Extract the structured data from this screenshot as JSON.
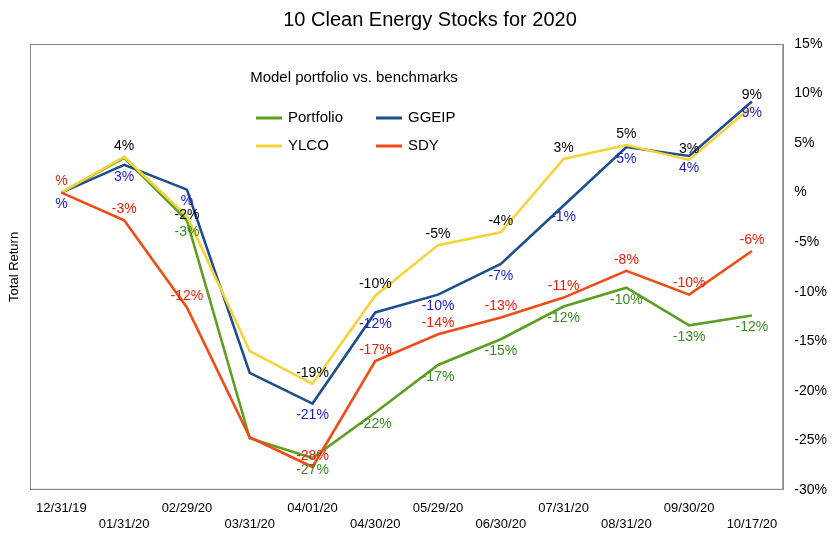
{
  "chart_data": {
    "type": "line",
    "title": "10 Clean Energy Stocks for 2020",
    "subtitle": "Model portfolio vs. benchmarks",
    "ylabel": "Total Return",
    "categories": [
      "12/31/19",
      "01/31/20",
      "02/29/20",
      "03/31/20",
      "04/01/20",
      "04/30/20",
      "05/29/20",
      "06/30/20",
      "07/31/20",
      "08/31/20",
      "09/30/20",
      "10/17/20"
    ],
    "series": [
      {
        "name": "Portfolio",
        "color": "#5e9e22",
        "values": [
          0,
          3.5,
          -2.8,
          -24.8,
          -26.8,
          -22.2,
          -17.4,
          -14.8,
          -11.5,
          -9.6,
          -13.4,
          -12.4
        ],
        "value_labels": [
          null,
          null,
          "-3%",
          null,
          "-27%",
          "-22%",
          "-17%",
          "-15%",
          "-12%",
          "-10%",
          "-13%",
          "-12%"
        ]
      },
      {
        "name": "GGEIP",
        "color": "#1f4e8c",
        "values": [
          0,
          2.8,
          0.3,
          -18.2,
          -21.3,
          -12.1,
          -10.3,
          -7.2,
          -1.3,
          4.6,
          3.7,
          9.2
        ],
        "value_labels": [
          "%",
          "3%",
          "%",
          null,
          "-21%",
          "-12%",
          "-10%",
          "-7%",
          "-1%",
          "5%",
          "4%",
          "9%"
        ]
      },
      {
        "name": "YLCO",
        "color": "#f5d33a",
        "values": [
          0,
          3.6,
          -2.4,
          -16,
          -19.3,
          -10.4,
          -5.3,
          -4,
          3.4,
          4.8,
          3.3,
          8.7
        ],
        "value_labels": [
          null,
          "4%",
          "-2%",
          null,
          "-19%",
          "-10%",
          "-5%",
          "-4%",
          "3%",
          "5%",
          "3%",
          "9%"
        ]
      },
      {
        "name": "SDY",
        "color": "#f24b16",
        "values": [
          0,
          -2.8,
          -11.6,
          -24.7,
          -27.7,
          -17,
          -14.3,
          -12.6,
          -10.6,
          -7.9,
          -10.3,
          -5.9
        ],
        "value_labels": [
          "%",
          "-3%",
          "-12%",
          null,
          "-28%",
          "-17%",
          "-14%",
          "-13%",
          "-11%",
          "-8%",
          "-10%",
          "-6%"
        ]
      }
    ],
    "ylim": [
      -30,
      15
    ],
    "yticks": [
      {
        "value": -30,
        "label": "-30%"
      },
      {
        "value": -25,
        "label": "-25%"
      },
      {
        "value": -20,
        "label": "-20%"
      },
      {
        "value": -15,
        "label": "-15%"
      },
      {
        "value": -10,
        "label": "-10%"
      },
      {
        "value": -5,
        "label": "-5%"
      },
      {
        "value": 0,
        "label": "%"
      },
      {
        "value": 5,
        "label": "5%"
      },
      {
        "value": 10,
        "label": "10%"
      },
      {
        "value": 15,
        "label": "15%"
      }
    ],
    "grid": false,
    "legend": "top",
    "data_labels": true,
    "marker": "none"
  }
}
